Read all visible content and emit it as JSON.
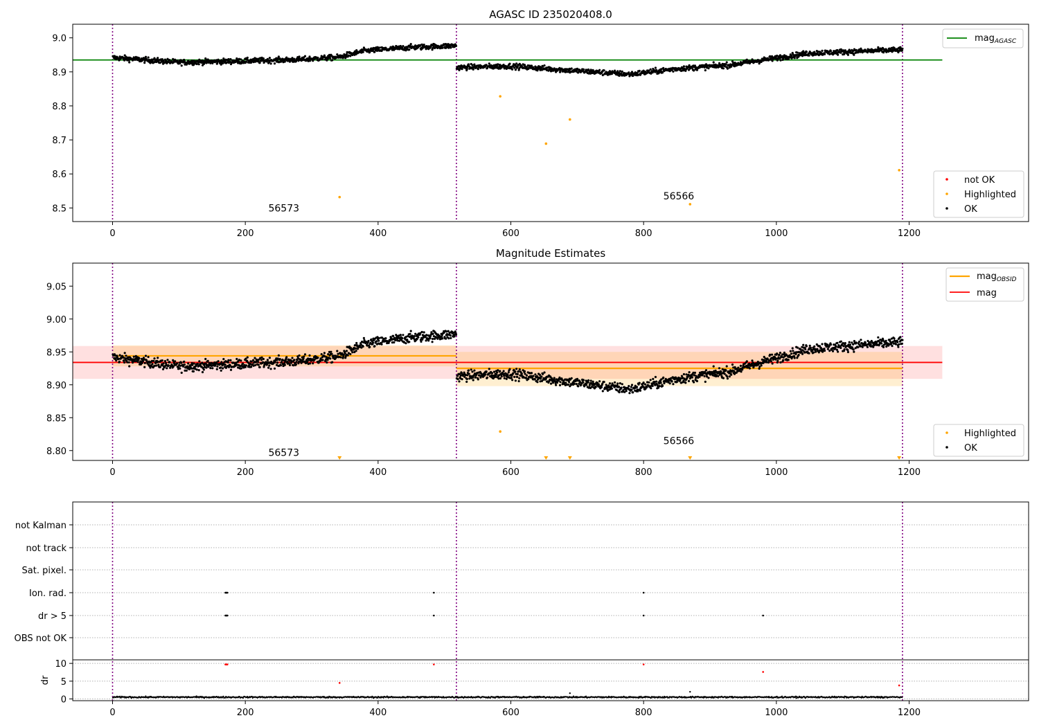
{
  "chart_data": [
    {
      "type": "scatter",
      "title": "AGASC ID 235020408.0",
      "xlabel": "",
      "ylabel": "",
      "xlim": [
        -60,
        1380
      ],
      "ylim": [
        8.46,
        9.04
      ],
      "x_ticks": [
        0,
        200,
        400,
        600,
        800,
        1000,
        1200
      ],
      "x_tick_labels": [
        "0",
        "200",
        "400",
        "600",
        "800",
        "1000",
        "1200"
      ],
      "y_ticks": [
        8.5,
        8.6,
        8.7,
        8.8,
        8.9,
        9.0
      ],
      "y_tick_labels": [
        "8.5",
        "8.6",
        "8.7",
        "8.8",
        "8.9",
        "9.0"
      ],
      "obsid_boundaries": [
        0,
        518,
        1190
      ],
      "annotations": [
        {
          "text": "56573",
          "x": 258,
          "y": 8.49
        },
        {
          "text": "56566",
          "x": 853,
          "y": 8.525
        }
      ],
      "reference_line": {
        "name": "mag",
        "subscript": "AGASC",
        "y": 8.935,
        "x_range": [
          -60,
          1250
        ],
        "color": "#008000"
      },
      "highlighted_points": {
        "x": [
          342,
          584,
          653,
          689,
          870,
          1185
        ],
        "y": [
          8.532,
          8.828,
          8.689,
          8.76,
          8.511,
          8.611
        ]
      },
      "ok_segments": [
        {
          "x": [
            0,
            100,
            200,
            280,
            340,
            380,
            450,
            518
          ],
          "y": [
            8.942,
            8.928,
            8.932,
            8.936,
            8.943,
            8.962,
            8.972,
            8.977
          ]
        },
        {
          "x": [
            518,
            600,
            700,
            780,
            850,
            930,
            980,
            1050,
            1190
          ],
          "y": [
            8.913,
            8.917,
            8.903,
            8.893,
            8.909,
            8.92,
            8.935,
            8.955,
            8.965
          ]
        }
      ],
      "legend": {
        "top_right": [
          "mag_AGASC"
        ],
        "bottom_right": [
          {
            "label": "not OK",
            "color": "#ff0000"
          },
          {
            "label": "Highlighted",
            "color": "#ffa500"
          },
          {
            "label": "OK",
            "color": "#000000"
          }
        ]
      }
    },
    {
      "type": "scatter",
      "title": "Magnitude Estimates",
      "xlabel": "",
      "ylabel": "",
      "xlim": [
        -60,
        1380
      ],
      "ylim": [
        8.785,
        9.085
      ],
      "x_ticks": [
        0,
        200,
        400,
        600,
        800,
        1000,
        1200
      ],
      "x_tick_labels": [
        "0",
        "200",
        "400",
        "600",
        "800",
        "1000",
        "1200"
      ],
      "y_ticks": [
        8.8,
        8.85,
        8.9,
        8.95,
        9.0,
        9.05
      ],
      "y_tick_labels": [
        "8.80",
        "8.85",
        "8.90",
        "8.95",
        "9.00",
        "9.05"
      ],
      "obsid_boundaries": [
        0,
        518,
        1190
      ],
      "annotations": [
        {
          "text": "56573",
          "x": 258,
          "y": 8.792
        },
        {
          "text": "56566",
          "x": 853,
          "y": 8.81
        }
      ],
      "mag_line": {
        "name": "mag",
        "y": 8.934,
        "band": [
          8.909,
          8.959
        ],
        "x_range": [
          -60,
          1250
        ],
        "color": "#ff0000"
      },
      "obsid_lines": [
        {
          "name": "mag",
          "subscript": "OBSID",
          "x_range": [
            0,
            518
          ],
          "y": 8.944,
          "band": [
            8.928,
            8.96
          ]
        },
        {
          "name": "mag",
          "subscript": "OBSID",
          "x_range": [
            518,
            1190
          ],
          "y": 8.925,
          "band": [
            8.898,
            8.95
          ]
        }
      ],
      "highlighted_points": {
        "x": [
          584
        ],
        "y": [
          8.829
        ]
      },
      "off_scale_markers_x": [
        342,
        653,
        689,
        870,
        1185
      ],
      "ok_segments": [
        {
          "x": [
            0,
            100,
            200,
            280,
            340,
            380,
            450,
            518
          ],
          "y": [
            8.942,
            8.928,
            8.932,
            8.936,
            8.943,
            8.962,
            8.972,
            8.977
          ]
        },
        {
          "x": [
            518,
            600,
            700,
            780,
            850,
            930,
            980,
            1050,
            1190
          ],
          "y": [
            8.913,
            8.917,
            8.903,
            8.893,
            8.909,
            8.92,
            8.935,
            8.955,
            8.965
          ]
        }
      ],
      "legend": {
        "top_right": [
          "mag_OBSID",
          "mag"
        ],
        "bottom_right": [
          {
            "label": "Highlighted",
            "color": "#ffa500"
          },
          {
            "label": "OK",
            "color": "#000000"
          }
        ]
      }
    },
    {
      "type": "scatter",
      "title": "",
      "xlabel": "",
      "ylabel": "",
      "xlim": [
        -60,
        1380
      ],
      "x_ticks": [
        0,
        200,
        400,
        600,
        800,
        1000,
        1200
      ],
      "x_tick_labels": [
        "0",
        "200",
        "400",
        "600",
        "800",
        "1000",
        "1200"
      ],
      "obsid_boundaries": [
        0,
        518,
        1190
      ],
      "flag_categories": [
        "not Kalman",
        "not track",
        "Sat. pixel.",
        "Ion. rad.",
        "dr > 5",
        "OBS not OK"
      ],
      "flag_points": [
        {
          "category": "Ion. rad.",
          "x": [
            170,
            171,
            172,
            173,
            484,
            800
          ]
        },
        {
          "category": "dr > 5",
          "x": [
            170,
            171,
            172,
            173,
            484,
            800,
            980
          ]
        }
      ],
      "dr_axis": {
        "ylabel": "dr",
        "ylim": [
          -0.5,
          11
        ],
        "y_ticks": [
          0,
          5,
          10
        ],
        "y_tick_labels": [
          "0",
          "5",
          "10"
        ]
      },
      "dr_outliers": {
        "red": {
          "x": [
            170,
            171,
            172,
            173,
            484,
            800,
            980,
            342,
            1185
          ],
          "y": [
            9.7,
            9.7,
            9.7,
            9.7,
            9.7,
            9.7,
            7.6,
            4.5,
            3.8
          ]
        },
        "black": {
          "x": [
            689,
            870
          ],
          "y": [
            1.6,
            2.0
          ]
        }
      },
      "dr_baseline_level": 0.5
    }
  ]
}
